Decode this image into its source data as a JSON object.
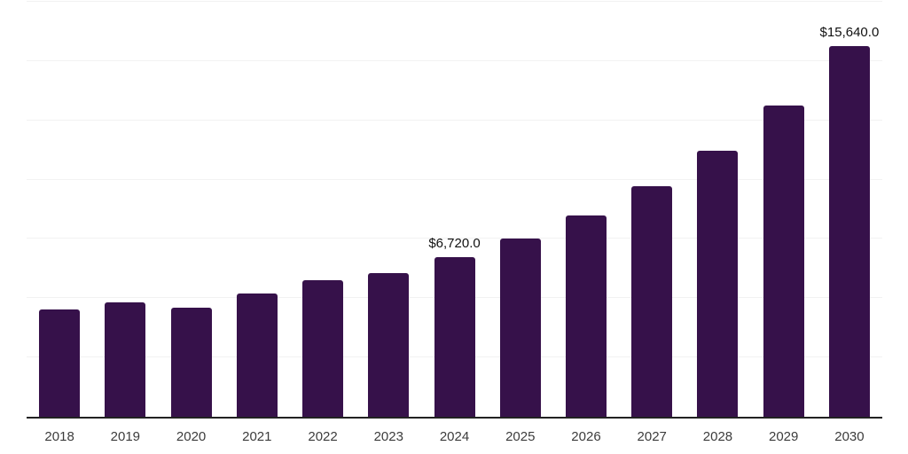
{
  "chart_data": {
    "type": "bar",
    "categories": [
      "2018",
      "2019",
      "2020",
      "2021",
      "2022",
      "2023",
      "2024",
      "2025",
      "2026",
      "2027",
      "2028",
      "2029",
      "2030"
    ],
    "values": [
      4520,
      4820,
      4600,
      5200,
      5760,
      6060,
      6720,
      7520,
      8490,
      9720,
      11220,
      13130,
      15640
    ],
    "data_labels": {
      "2024": "$6,720.0",
      "2030": "$15,640.0"
    },
    "xlabel": "",
    "ylabel": "",
    "ylim": [
      0,
      17500
    ],
    "grid_step": 2500,
    "gridlines": "horizontal",
    "legend": "none",
    "bar_width_fraction": 0.62,
    "colors": {
      "bar": "#36114a",
      "gridline": "#f2f2f2",
      "axis_line": "#222222",
      "tick_label": "#3c3c3c",
      "data_label": "#111111",
      "background": "#ffffff"
    }
  }
}
